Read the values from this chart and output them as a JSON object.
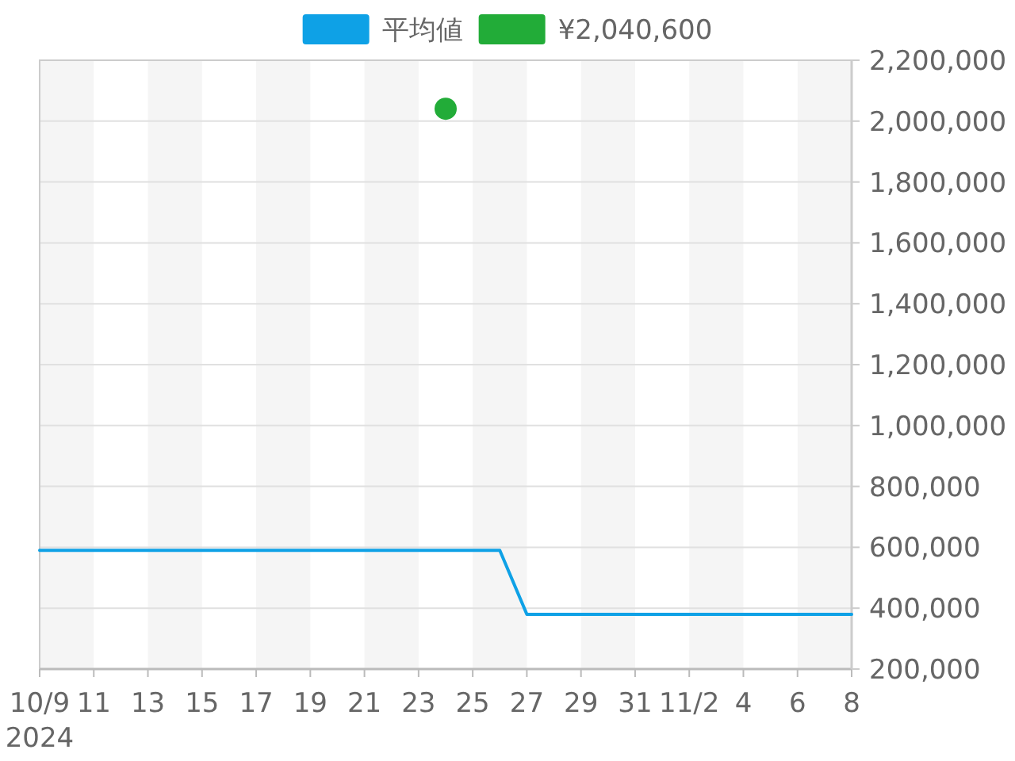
{
  "chart_data": {
    "type": "line",
    "series": [
      {
        "name": "平均値",
        "color": "#0ea1e6",
        "marker": "none",
        "x": [
          "2024-10-09",
          "2024-10-26",
          "2024-10-27",
          "2024-11-08"
        ],
        "values": [
          590000,
          590000,
          380000,
          380000
        ]
      },
      {
        "name": "¥2,040,600",
        "type": "scatter",
        "color": "#22ac38",
        "marker": "circle",
        "x": [
          "2024-10-24"
        ],
        "values": [
          2040600
        ]
      }
    ],
    "xlim": [
      "2024-10-09",
      "2024-11-08"
    ],
    "xticks": [
      {
        "value": "2024-10-09",
        "label": "10/9\n2024"
      },
      {
        "value": "2024-10-11",
        "label": "11"
      },
      {
        "value": "2024-10-13",
        "label": "13"
      },
      {
        "value": "2024-10-15",
        "label": "15"
      },
      {
        "value": "2024-10-17",
        "label": "17"
      },
      {
        "value": "2024-10-19",
        "label": "19"
      },
      {
        "value": "2024-10-21",
        "label": "21"
      },
      {
        "value": "2024-10-23",
        "label": "23"
      },
      {
        "value": "2024-10-25",
        "label": "25"
      },
      {
        "value": "2024-10-27",
        "label": "27"
      },
      {
        "value": "2024-10-29",
        "label": "29"
      },
      {
        "value": "2024-10-31",
        "label": "31"
      },
      {
        "value": "2024-11-02",
        "label": "11/2"
      },
      {
        "value": "2024-11-04",
        "label": "4"
      },
      {
        "value": "2024-11-06",
        "label": "6"
      },
      {
        "value": "2024-11-08",
        "label": "8"
      }
    ],
    "ylim": [
      200000,
      2200000
    ],
    "yticks": [
      {
        "value": 200000,
        "label": "200,000"
      },
      {
        "value": 400000,
        "label": "400,000"
      },
      {
        "value": 600000,
        "label": "600,000"
      },
      {
        "value": 800000,
        "label": "800,000"
      },
      {
        "value": 1000000,
        "label": "1,000,000"
      },
      {
        "value": 1200000,
        "label": "1,200,000"
      },
      {
        "value": 1400000,
        "label": "1,400,000"
      },
      {
        "value": 1600000,
        "label": "1,600,000"
      },
      {
        "value": 1800000,
        "label": "1,800,000"
      },
      {
        "value": 2000000,
        "label": "2,000,000"
      },
      {
        "value": 2200000,
        "label": "2,200,000"
      }
    ],
    "grid": true,
    "legend": "top"
  }
}
